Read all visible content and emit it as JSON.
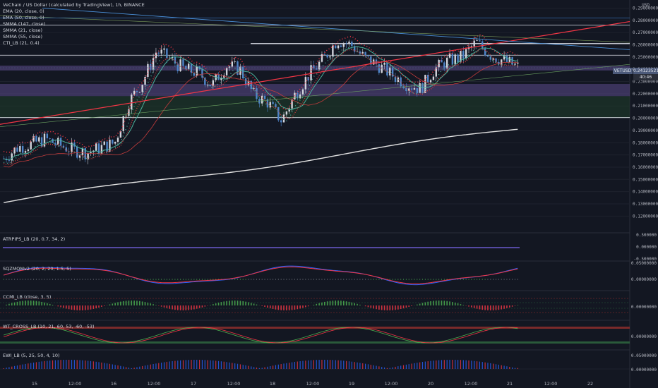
{
  "title": "VeChain / US Dollar (calculated by TradingView), 1h, BINANCE",
  "indicators_legend": [
    "EMA (20, close, 0)",
    "EMA (50, close, 0)",
    "SMMA (147, close)",
    "SMMA (21, close)",
    "SMMA (55, close)",
    "CTI_LB (21, 0.4)"
  ],
  "symbol_badge": "VETUSD",
  "price_badge": "0.24123521",
  "countdown_badge": "40:46",
  "currency": "USD",
  "panels": [
    {
      "name": "ATRPIPS_LB (20, 0.7, 34, 2)",
      "ticks": [
        "0.500000",
        "0.000000",
        "-0.500000"
      ]
    },
    {
      "name": "SQZMOMv2 (20, 2, 20, 1.5, 5)",
      "ticks": [
        "0.05000000",
        "0.00000000"
      ]
    },
    {
      "name": "CCMI_LB (close, 3, 5)",
      "ticks": [
        "0.00000000"
      ]
    },
    {
      "name": "WT_CROSS_LB (10, 21, 60, 53, -60, -53)",
      "ticks": [
        "0.00000000"
      ]
    },
    {
      "name": "EWI_LB (5, 25, 50, 4, 10)",
      "ticks": [
        "0.05000000",
        "0.00000000"
      ]
    }
  ],
  "colors": {
    "background": "#131722",
    "up_candle": "#d1d4dc",
    "down_candle": "#4f85c9",
    "ema20": "#4caf9a",
    "ema50": "#c43c3c",
    "smma147": "#e0e0e0",
    "trend_red": "#f23645",
    "trend_blue": "#2962ff",
    "zone_purple": "#5b4a8a",
    "zone_green": "#1e3a2a"
  },
  "chart_data": {
    "type": "candlestick",
    "title": "VeChain / US Dollar (calculated by TradingView), 1h, BINANCE",
    "x_ticks": [
      "15",
      "12:00",
      "16",
      "12:00",
      "17",
      "12:00",
      "18",
      "12:00",
      "19",
      "12:00",
      "20",
      "12:00",
      "21",
      "12:00",
      "22"
    ],
    "y_ticks": [
      "0.29000000",
      "0.28000000",
      "0.27000000",
      "0.26000000",
      "0.25000000",
      "0.24000000",
      "0.23000000",
      "0.22000000",
      "0.21000000",
      "0.20000000",
      "0.19000000",
      "0.18000000",
      "0.17000000",
      "0.16000000",
      "0.15000000",
      "0.14000000",
      "0.13000000",
      "0.12000000"
    ],
    "ylim": [
      0.115,
      0.292
    ],
    "close_approx": [
      0.167,
      0.176,
      0.179,
      0.183,
      0.178,
      0.174,
      0.172,
      0.176,
      0.18,
      0.213,
      0.23,
      0.255,
      0.248,
      0.24,
      0.237,
      0.227,
      0.243,
      0.24,
      0.219,
      0.213,
      0.198,
      0.22,
      0.236,
      0.248,
      0.264,
      0.26,
      0.249,
      0.243,
      0.235,
      0.228,
      0.224,
      0.24,
      0.247,
      0.25,
      0.262,
      0.252,
      0.247,
      0.242
    ],
    "last_price": 0.24123521,
    "horizontal_levels": [
      0.276,
      0.261,
      0.2515,
      0.2005
    ],
    "zones": [
      {
        "from": 0.239,
        "to": 0.243,
        "color": "purple"
      },
      {
        "from": 0.218,
        "to": 0.228,
        "color": "purple"
      },
      {
        "from": 0.2005,
        "to": 0.218,
        "color": "green"
      }
    ]
  }
}
